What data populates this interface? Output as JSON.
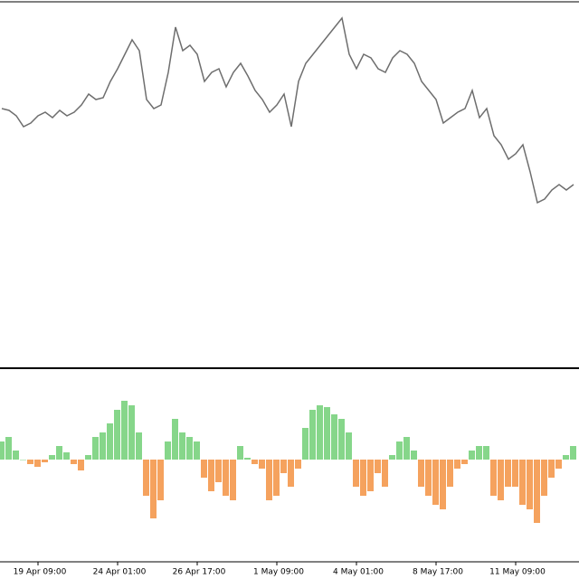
{
  "chart_data": [
    {
      "type": "line",
      "color": "#6e6e6e",
      "ylim": [
        0,
        100
      ],
      "values": [
        70,
        69.5,
        68,
        65,
        66,
        68,
        69,
        67.5,
        69.5,
        68,
        69,
        71,
        74,
        72.5,
        73,
        77.5,
        81,
        85,
        89,
        86,
        72.5,
        70,
        71,
        80,
        92.5,
        86,
        87.5,
        85,
        77.5,
        80,
        81,
        76,
        80,
        82.5,
        79,
        75,
        72.5,
        69,
        71,
        74,
        65,
        77.5,
        82.5,
        85,
        87.5,
        90,
        92.5,
        95,
        85,
        81,
        85,
        84,
        81,
        80,
        84,
        86,
        85,
        82.5,
        77.5,
        75,
        72.5,
        66,
        67.5,
        69,
        70,
        75,
        67.5,
        70,
        62.5,
        60,
        56,
        57.5,
        60,
        52.5,
        44,
        45,
        47.5,
        49,
        47.5,
        49
      ]
    },
    {
      "type": "histogram",
      "positive_color": "#86d68a",
      "negative_color": "#f5a25e",
      "ylim": [
        -100,
        100
      ],
      "categories": [
        null,
        null,
        null,
        null,
        null,
        "19 Apr 09:00",
        null,
        null,
        null,
        null,
        null,
        null,
        null,
        null,
        null,
        null,
        "24 Apr 01:00",
        null,
        null,
        null,
        null,
        null,
        null,
        null,
        null,
        null,
        null,
        "26 Apr 17:00",
        null,
        null,
        null,
        null,
        null,
        null,
        null,
        null,
        null,
        null,
        "1 May 09:00",
        null,
        null,
        null,
        null,
        null,
        null,
        null,
        null,
        null,
        null,
        "4 May 01:00",
        null,
        null,
        null,
        null,
        null,
        null,
        null,
        null,
        null,
        null,
        "8 May 17:00",
        null,
        null,
        null,
        null,
        null,
        null,
        null,
        null,
        null,
        null,
        "11 May 09:00",
        null,
        null,
        null,
        null,
        null,
        null,
        null,
        null
      ],
      "values": [
        20,
        25,
        10,
        0,
        -5,
        -8,
        -3,
        5,
        15,
        8,
        -5,
        -12,
        5,
        25,
        30,
        40,
        55,
        65,
        60,
        30,
        -40,
        -65,
        -45,
        20,
        45,
        30,
        25,
        20,
        -20,
        -35,
        -25,
        -40,
        -45,
        15,
        2,
        -5,
        -10,
        -45,
        -40,
        -15,
        -30,
        -10,
        35,
        55,
        60,
        58,
        50,
        45,
        30,
        -30,
        -40,
        -35,
        -15,
        -30,
        5,
        20,
        25,
        10,
        -30,
        -40,
        -50,
        -55,
        -30,
        -10,
        -5,
        10,
        15,
        15,
        -40,
        -45,
        -30,
        -30,
        -50,
        -55,
        -70,
        -40,
        -20,
        -10,
        5,
        15
      ]
    }
  ]
}
